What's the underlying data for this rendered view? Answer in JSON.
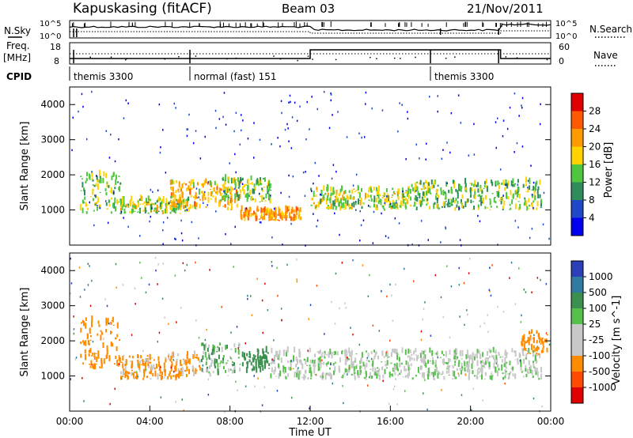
{
  "header": {
    "station": "Kapuskasing (fitACF)",
    "beam": "Beam 03",
    "date": "21/Nov/2011"
  },
  "noise_panel": {
    "left_label": "N.Sky",
    "right_label": "N.Search",
    "left_ticks": [
      "10^5",
      "10^0"
    ],
    "right_ticks": [
      "10^5",
      "10^0"
    ]
  },
  "freq_panel": {
    "left_label_1": "Freq.",
    "left_label_2": "[MHz]",
    "left_ticks": [
      "18",
      "8"
    ],
    "right_label": "Nave",
    "right_ticks": [
      "60",
      "0"
    ]
  },
  "cpid": {
    "label": "CPID",
    "modes": [
      {
        "name": "themis 3300",
        "start_hour": 0
      },
      {
        "name": "normal (fast) 151",
        "start_hour": 6
      },
      {
        "name": "themis 3300",
        "start_hour": 18
      }
    ]
  },
  "colors": {
    "power": [
      "#0000ee",
      "#1f49c8",
      "#2f8d5b",
      "#4fc63f",
      "#ffd200",
      "#ff9a00",
      "#ff5a00",
      "#e00000"
    ],
    "velocity": [
      "#2a3fb8",
      "#2f7aa0",
      "#3b8f4f",
      "#55c04a",
      "#c8c8c8",
      "#c8c8c8",
      "#ff8c00",
      "#ff4a00",
      "#e00000"
    ]
  },
  "chart_data": [
    {
      "type": "heatmap",
      "title": "Power",
      "ylabel": "Slant Range [km]",
      "yticks": [
        "1000",
        "2000",
        "3000",
        "4000"
      ],
      "ylim": [
        0,
        4500
      ],
      "xlim": [
        0,
        24
      ],
      "colorbar_label": "Power [dB]",
      "colorbar_ticks": [
        "28",
        "24",
        "20",
        "16",
        "12",
        "8",
        "4"
      ],
      "colorbar_range": [
        0,
        32
      ],
      "features": [
        {
          "t0": 0.5,
          "t1": 2.5,
          "r0": 900,
          "r1": 2000,
          "level": 14
        },
        {
          "t0": 2.5,
          "t1": 6.0,
          "r0": 900,
          "r1": 1300,
          "level": 16
        },
        {
          "t0": 5.0,
          "t1": 8.5,
          "r0": 1000,
          "r1": 1800,
          "level": 20
        },
        {
          "t0": 7.5,
          "t1": 10.0,
          "r0": 1200,
          "r1": 1900,
          "level": 14
        },
        {
          "t0": 8.5,
          "t1": 11.5,
          "r0": 700,
          "r1": 1000,
          "level": 22
        },
        {
          "t0": 12.0,
          "t1": 17.0,
          "r0": 1000,
          "r1": 1600,
          "level": 16
        },
        {
          "t0": 17.0,
          "t1": 23.5,
          "r0": 1000,
          "r1": 1800,
          "level": 14
        }
      ]
    },
    {
      "type": "heatmap",
      "title": "Velocity",
      "ylabel": "Slant Range [km]",
      "yticks": [
        "1000",
        "2000",
        "3000",
        "4000"
      ],
      "ylim": [
        0,
        4500
      ],
      "xlim": [
        0,
        24
      ],
      "xticks": [
        "00:00",
        "04:00",
        "08:00",
        "12:00",
        "16:00",
        "20:00",
        "00:00"
      ],
      "xlabel": "Time UT",
      "colorbar_label": "Velocity [m s^-1]",
      "colorbar_ticks": [
        "1000",
        "500",
        "100",
        "25",
        "-25",
        "-100",
        "-500",
        "-1000"
      ],
      "features": [
        {
          "t0": 0.5,
          "t1": 2.5,
          "r0": 1200,
          "r1": 2600,
          "v": -300
        },
        {
          "t0": 2.5,
          "t1": 6.5,
          "r0": 900,
          "r1": 1600,
          "v": -150
        },
        {
          "t0": 6.5,
          "t1": 8.5,
          "r0": 1000,
          "r1": 1900,
          "v": 60
        },
        {
          "t0": 8.5,
          "t1": 10.0,
          "r0": 1100,
          "r1": 1700,
          "v": 200
        },
        {
          "t0": 10.0,
          "t1": 23.5,
          "r0": 900,
          "r1": 1700,
          "v": 0
        },
        {
          "t0": 22.5,
          "t1": 23.8,
          "r0": 1600,
          "r1": 2300,
          "v": -300
        }
      ]
    }
  ]
}
